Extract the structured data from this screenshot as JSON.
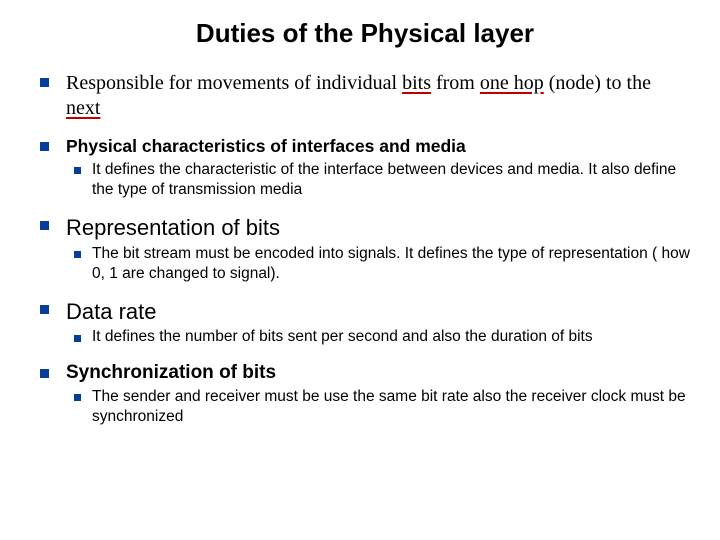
{
  "title": "Duties of the Physical layer",
  "colors": {
    "bullet": "#063e9c",
    "underline_red": "#c00000",
    "text": "#000000",
    "background": "#ffffff"
  },
  "bullets": {
    "b1": {
      "pre": "Responsible for movements of individual ",
      "bits": "bits",
      "mid1": " from ",
      "onehop": "one hop",
      "mid2": " (node) to the ",
      "next": "next"
    },
    "b2": {
      "text": "Physical characteristics of interfaces and media",
      "sub": "It defines the characteristic of the interface between devices and media. It also define the type of transmission media"
    },
    "b3": {
      "text": "Representation of bits",
      "sub": "The bit stream must be encoded into signals. It defines the type of representation ( how 0, 1 are changed to signal)."
    },
    "b4": {
      "text": "Data rate",
      "sub": "It defines the number of bits sent per second and also the duration of bits"
    },
    "b5": {
      "text": "Synchronization of bits",
      "sub": "The sender and receiver must be use the same bit rate also the receiver clock must be synchronized"
    }
  }
}
